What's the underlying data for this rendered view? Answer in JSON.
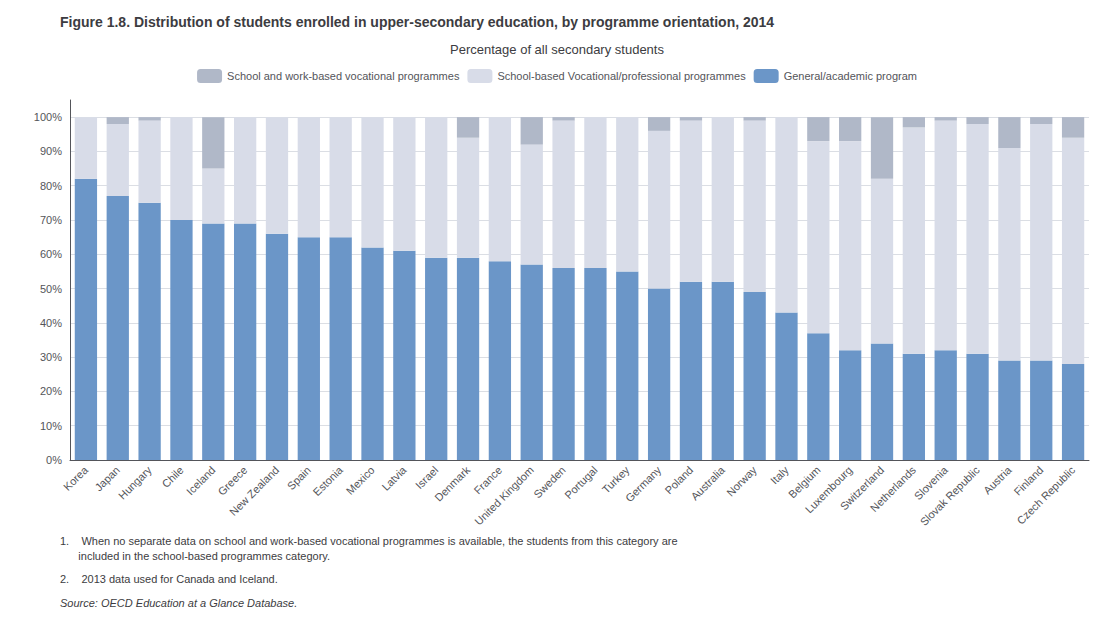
{
  "chart_data": {
    "type": "bar",
    "title": "Figure 1.8. Distribution of students enrolled in upper-secondary education, by programme orientation, 2014",
    "subtitle": "Percentage of all secondary students",
    "annotations": [
      "1.    When no separate data on school and work-based vocational programmes is available, the students from this category are\n      included in the school-based programmes category.",
      "2.    2013 data used for Canada and Iceland.",
      "Source: OECD Education at a Glance Database."
    ],
    "categories": [
      "Korea",
      "Japan",
      "Hungary",
      "Chile",
      "Iceland",
      "Greece",
      "New Zealand",
      "Spain",
      "Estonia",
      "Mexico",
      "Latvia",
      "Israel",
      "Denmark",
      "France",
      "United Kingdom",
      "Sweden",
      "Portugal",
      "Turkey",
      "Germany",
      "Poland",
      "Australia",
      "Norway",
      "Italy",
      "Belgium",
      "Luxembourg",
      "Switzerland",
      "Netherlands",
      "Slovenia",
      "Slovak Republic",
      "Austria",
      "Finland",
      "Czech Republic"
    ],
    "series": [
      {
        "name": "General/academic program",
        "color": "#6b96c8",
        "values": [
          82,
          77,
          75,
          70,
          69,
          69,
          66,
          65,
          65,
          62,
          61,
          59,
          59,
          58,
          57,
          56,
          56,
          55,
          50,
          52,
          52,
          49,
          43,
          37,
          32,
          34,
          31,
          32,
          31,
          29,
          29,
          28
        ]
      },
      {
        "name": "School-based Vocational/professional programmes",
        "color": "#d8dce8",
        "values": [
          18,
          21,
          24,
          30,
          16,
          31,
          34,
          35,
          35,
          38,
          39,
          41,
          35,
          42,
          35,
          43,
          44,
          45,
          46,
          47,
          48,
          50,
          57,
          56,
          61,
          48,
          66,
          67,
          67,
          62,
          69,
          66
        ]
      },
      {
        "name": "School and work-based vocational programmes",
        "color": "#b0b8c8",
        "values": [
          0,
          2,
          1,
          0,
          15,
          0,
          0,
          0,
          0,
          0,
          0,
          0,
          6,
          0,
          8,
          1,
          0,
          0,
          4,
          1,
          0,
          1,
          0,
          7,
          7,
          18,
          3,
          1,
          2,
          9,
          2,
          6
        ]
      }
    ],
    "stacked": true,
    "ylim": [
      0,
      105
    ],
    "yticks": [
      {
        "value": 0,
        "label": "0%"
      },
      {
        "value": 10,
        "label": "10%"
      },
      {
        "value": 20,
        "label": "20%"
      },
      {
        "value": 30,
        "label": "30%"
      },
      {
        "value": 40,
        "label": "40%"
      },
      {
        "value": 50,
        "label": "50%"
      },
      {
        "value": 60,
        "label": "60%"
      },
      {
        "value": 70,
        "label": "70%"
      },
      {
        "value": 80,
        "label": "80%"
      },
      {
        "value": 90,
        "label": "90%"
      },
      {
        "value": 100,
        "label": "100%"
      }
    ],
    "grid": true,
    "legend": "top"
  }
}
